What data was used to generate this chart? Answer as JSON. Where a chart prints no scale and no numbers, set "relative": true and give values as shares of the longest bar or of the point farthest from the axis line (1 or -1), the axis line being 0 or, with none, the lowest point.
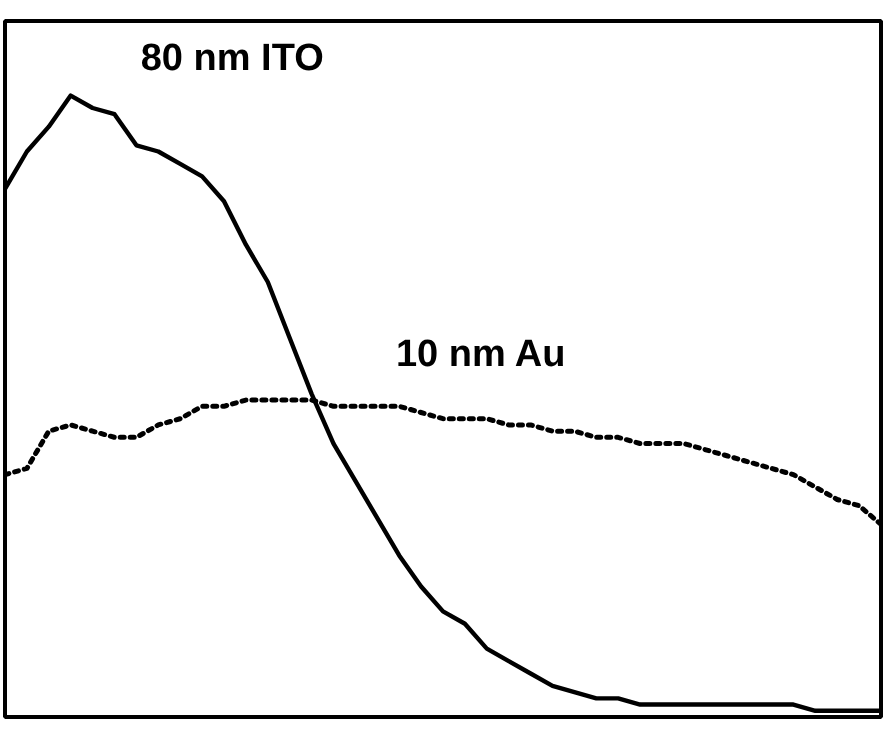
{
  "chart_data": {
    "type": "line",
    "relative": true,
    "legend": false,
    "grid": false,
    "categories": [
      null,
      null,
      null,
      null,
      null,
      null,
      null,
      null,
      null,
      null,
      null,
      null,
      null,
      null,
      null,
      null,
      null,
      null,
      null,
      null,
      null,
      null,
      null,
      null,
      null,
      null,
      null,
      null,
      null,
      null,
      null,
      null,
      null,
      null,
      null,
      null,
      null,
      null,
      null,
      null,
      null
    ],
    "series": [
      {
        "name": "80 nm ITO",
        "color": "#000000",
        "line_style": "solid",
        "values": [
          0.85,
          0.91,
          0.95,
          1.0,
          0.98,
          0.97,
          0.92,
          0.91,
          0.89,
          0.87,
          0.83,
          0.76,
          0.7,
          0.61,
          0.52,
          0.44,
          0.38,
          0.32,
          0.26,
          0.21,
          0.17,
          0.15,
          0.11,
          0.09,
          0.07,
          0.05,
          0.04,
          0.03,
          0.03,
          0.02,
          0.02,
          0.02,
          0.02,
          0.02,
          0.02,
          0.02,
          0.02,
          0.01,
          0.01,
          0.01,
          0.01
        ]
      },
      {
        "name": "10 nm Au",
        "color": "#000000",
        "line_style": "dotted",
        "values": [
          0.39,
          0.4,
          0.46,
          0.47,
          0.46,
          0.45,
          0.45,
          0.47,
          0.48,
          0.5,
          0.5,
          0.51,
          0.51,
          0.51,
          0.51,
          0.5,
          0.5,
          0.5,
          0.5,
          0.49,
          0.48,
          0.48,
          0.48,
          0.47,
          0.47,
          0.46,
          0.46,
          0.45,
          0.45,
          0.44,
          0.44,
          0.44,
          0.43,
          0.42,
          0.41,
          0.4,
          0.39,
          0.37,
          0.35,
          0.34,
          0.31
        ]
      }
    ]
  }
}
